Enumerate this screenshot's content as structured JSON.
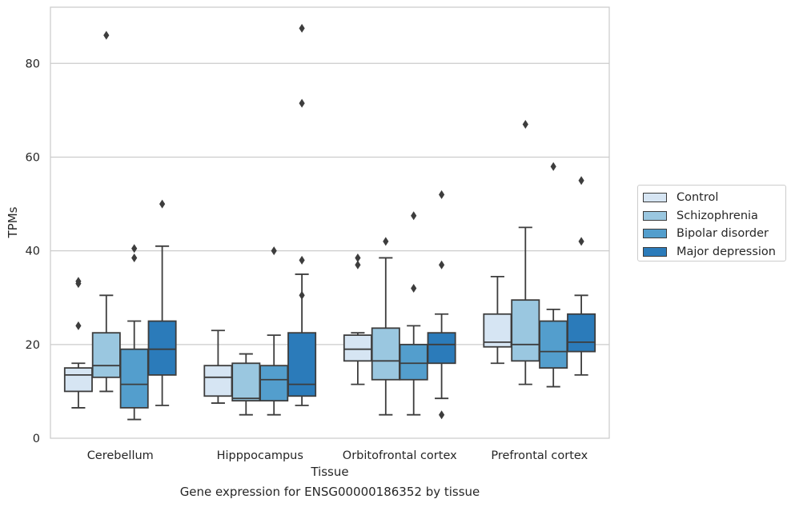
{
  "chart_data": {
    "type": "box",
    "title": "",
    "caption": "Gene expression for ENSG00000186352 by tissue",
    "xlabel": "Tissue",
    "ylabel": "TPMs",
    "ylim": [
      0,
      92
    ],
    "yticks": [
      0,
      20,
      40,
      60,
      80
    ],
    "grid": true,
    "legend_position": "right",
    "categories": [
      "Cerebellum",
      "Hipppocampus",
      "Orbitofrontal cortex",
      "Prefrontal cortex"
    ],
    "series": [
      {
        "name": "Control",
        "color": "#d6e5f3",
        "boxes": [
          {
            "whislo": 6.5,
            "q1": 10.0,
            "med": 13.5,
            "q3": 15.0,
            "whishi": 16.0,
            "fliers": [
              24.0,
              33.0,
              33.5
            ]
          },
          {
            "whislo": 7.5,
            "q1": 9.0,
            "med": 13.0,
            "q3": 15.5,
            "whishi": 23.0,
            "fliers": []
          },
          {
            "whislo": 11.5,
            "q1": 16.5,
            "med": 19.0,
            "q3": 22.0,
            "whishi": 22.5,
            "fliers": [
              37.0,
              38.5
            ]
          },
          {
            "whislo": 16.0,
            "q1": 19.5,
            "med": 20.5,
            "q3": 26.5,
            "whishi": 34.5,
            "fliers": []
          }
        ]
      },
      {
        "name": "Schizophrenia",
        "color": "#9ac7e0",
        "boxes": [
          {
            "whislo": 10.0,
            "q1": 13.0,
            "med": 15.5,
            "q3": 22.5,
            "whishi": 30.5,
            "fliers": [
              86.0
            ]
          },
          {
            "whislo": 5.0,
            "q1": 8.0,
            "med": 8.5,
            "q3": 16.0,
            "whishi": 18.0,
            "fliers": []
          },
          {
            "whislo": 5.0,
            "q1": 12.5,
            "med": 16.5,
            "q3": 23.5,
            "whishi": 38.5,
            "fliers": [
              42.0
            ]
          },
          {
            "whislo": 11.5,
            "q1": 16.5,
            "med": 20.0,
            "q3": 29.5,
            "whishi": 45.0,
            "fliers": [
              67.0
            ]
          }
        ]
      },
      {
        "name": "Bipolar disorder",
        "color": "#539ecd",
        "boxes": [
          {
            "whislo": 4.0,
            "q1": 6.5,
            "med": 11.5,
            "q3": 19.0,
            "whishi": 25.0,
            "fliers": [
              38.5,
              40.5
            ]
          },
          {
            "whislo": 5.0,
            "q1": 8.0,
            "med": 12.5,
            "q3": 15.5,
            "whishi": 22.0,
            "fliers": [
              40.0
            ]
          },
          {
            "whislo": 5.0,
            "q1": 12.5,
            "med": 16.0,
            "q3": 20.0,
            "whishi": 24.0,
            "fliers": [
              32.0,
              47.5
            ]
          },
          {
            "whislo": 11.0,
            "q1": 15.0,
            "med": 18.5,
            "q3": 25.0,
            "whishi": 27.5,
            "fliers": [
              58.0
            ]
          }
        ]
      },
      {
        "name": "Major depression",
        "color": "#2b7bba",
        "boxes": [
          {
            "whislo": 7.0,
            "q1": 13.5,
            "med": 19.0,
            "q3": 25.0,
            "whishi": 41.0,
            "fliers": [
              50.0
            ]
          },
          {
            "whislo": 7.0,
            "q1": 9.0,
            "med": 11.5,
            "q3": 22.5,
            "whishi": 35.0,
            "fliers": [
              30.5,
              38.0,
              71.5,
              87.5
            ]
          },
          {
            "whislo": 8.5,
            "q1": 16.0,
            "med": 20.0,
            "q3": 22.5,
            "whishi": 26.5,
            "fliers": [
              5.0,
              37.0,
              52.0
            ]
          },
          {
            "whislo": 13.5,
            "q1": 18.5,
            "med": 20.5,
            "q3": 26.5,
            "whishi": 30.5,
            "fliers": [
              42.0,
              55.0
            ]
          }
        ]
      }
    ]
  }
}
